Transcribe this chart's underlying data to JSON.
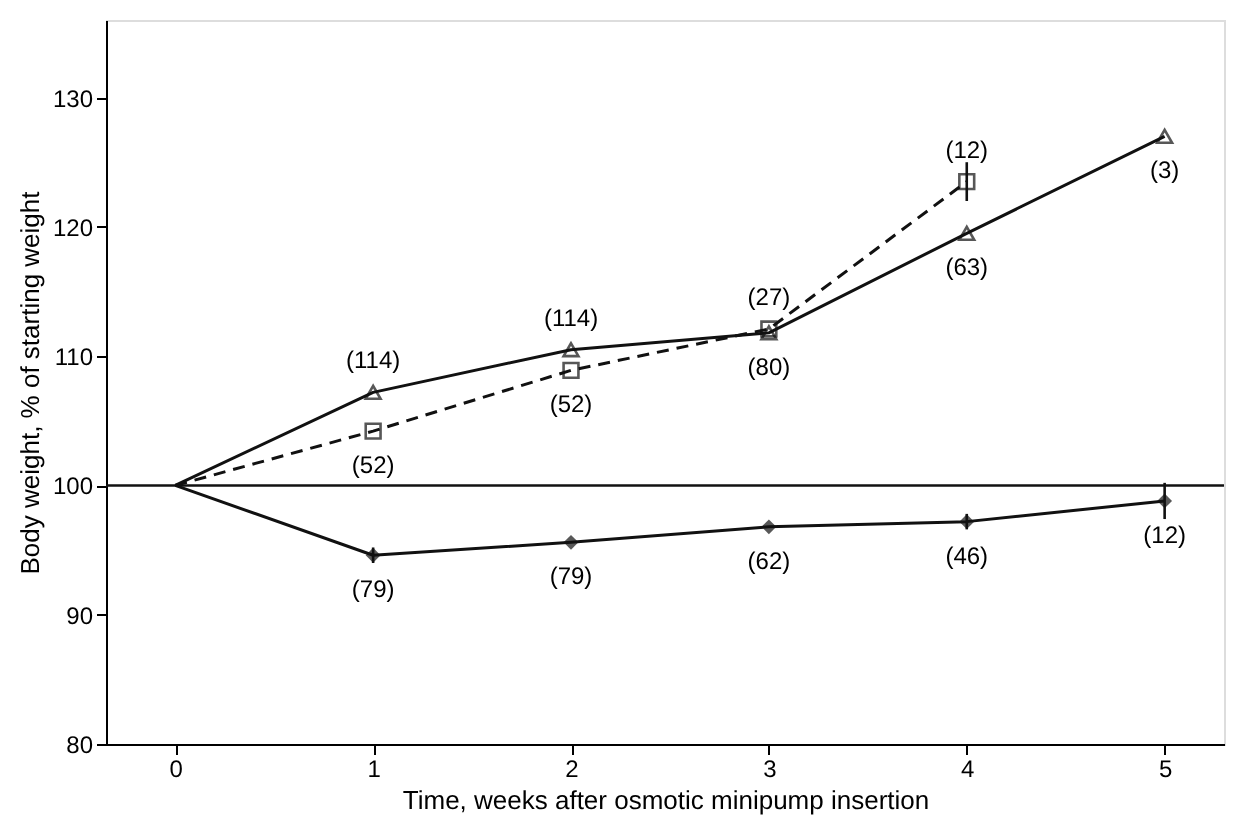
{
  "chart_data": {
    "type": "line",
    "xlabel": "Time, weeks after osmotic minipump insertion",
    "ylabel": "Body weight, % of starting weight",
    "xlim": [
      -0.35,
      5.3
    ],
    "xticks": [
      0,
      1,
      2,
      3,
      4,
      5
    ],
    "ylim": [
      80,
      136
    ],
    "yticks": [
      80,
      90,
      100,
      110,
      120,
      130
    ],
    "grid": false,
    "series": [
      {
        "color": "#111111",
        "marker": "triangle",
        "line_style": "solid",
        "x": [
          0,
          1,
          2,
          3,
          4,
          5
        ],
        "values": [
          100,
          107.2,
          110.5,
          111.8,
          119.5,
          127
        ]
      },
      {
        "color": "#111111",
        "marker": "square",
        "line_style": "dashed",
        "x": [
          0,
          1,
          2,
          3,
          4
        ],
        "values": [
          100,
          104.2,
          108.9,
          112.1,
          123.5
        ],
        "errors": [
          null,
          null,
          null,
          null,
          1.5
        ]
      },
      {
        "color": "#111111",
        "marker": "diamond",
        "line_style": "solid",
        "x": [
          0,
          1,
          2,
          3,
          4,
          5
        ],
        "values": [
          100,
          94.6,
          95.6,
          96.8,
          97.2,
          98.8
        ],
        "errors": [
          null,
          0.6,
          null,
          null,
          0.6,
          1.4
        ]
      }
    ],
    "ref_lines": [
      {
        "axis": "y",
        "value": 100,
        "color": "#111111",
        "line_style": "solid"
      }
    ],
    "annotations": [
      {
        "text": "(114)",
        "x": 1,
        "y": 107.2
      },
      {
        "text": "(114)",
        "x": 2,
        "y": 110.5
      },
      {
        "text": "(27)",
        "x": 3,
        "y": 112.1
      },
      {
        "text": "(80)",
        "x": 3,
        "y": 111.8
      },
      {
        "text": "(12)",
        "x": 4,
        "y": 123.5
      },
      {
        "text": "(63)",
        "x": 4,
        "y": 119.5
      },
      {
        "text": "(3)",
        "x": 5,
        "y": 127
      },
      {
        "text": "(52)",
        "x": 1,
        "y": 104.2
      },
      {
        "text": "(52)",
        "x": 2,
        "y": 108.9
      },
      {
        "text": "(79)",
        "x": 1,
        "y": 94.6
      },
      {
        "text": "(79)",
        "x": 2,
        "y": 95.6
      },
      {
        "text": "(62)",
        "x": 3,
        "y": 96.8
      },
      {
        "text": "(46)",
        "x": 4,
        "y": 97.2
      },
      {
        "text": "(12)",
        "x": 5,
        "y": 98.8
      }
    ]
  }
}
